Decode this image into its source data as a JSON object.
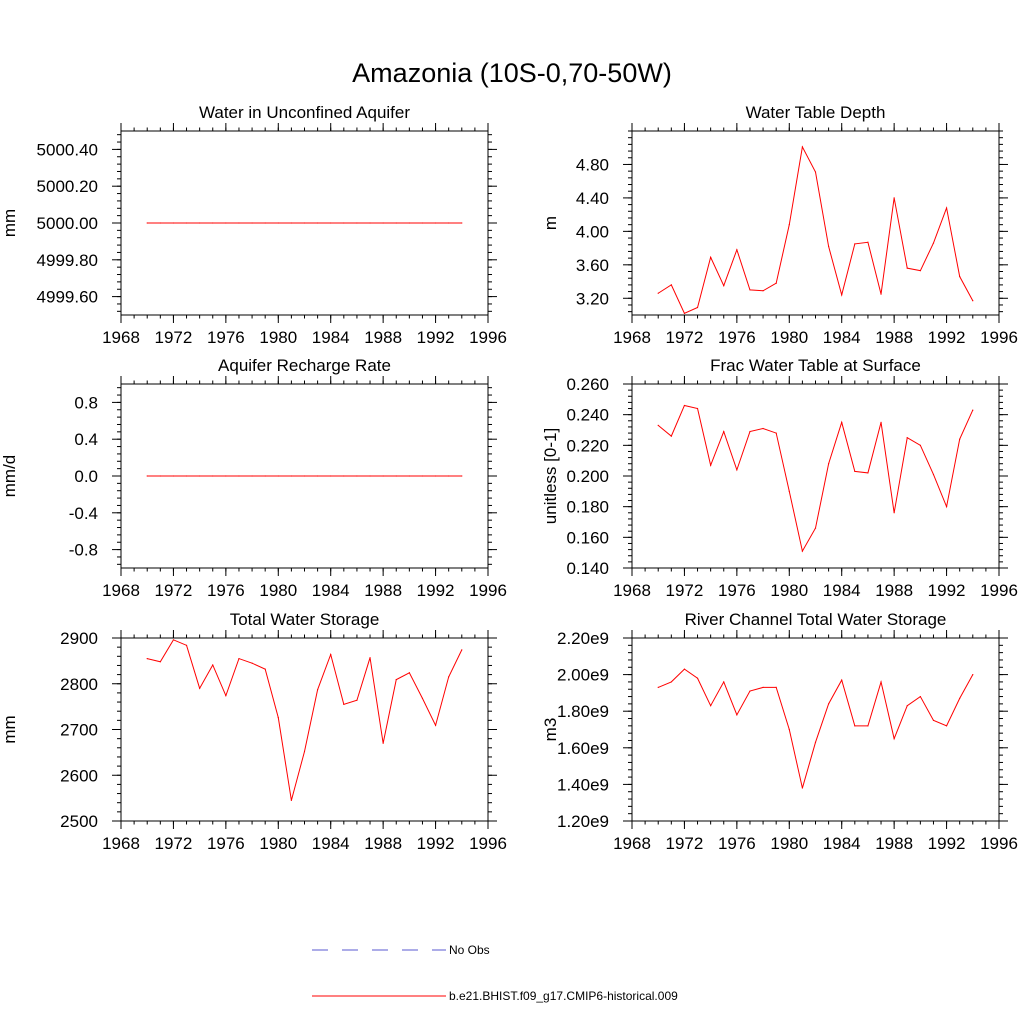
{
  "figure": {
    "title": "Amazonia (10S-0,70-50W)"
  },
  "colors": {
    "model": "#ff0000",
    "obs": "#5a5ad2",
    "axis": "#000000"
  },
  "legend": {
    "obs_label": "No Obs",
    "model_label": "b.e21.BHIST.f09_g17.CMIP6-historical.009"
  },
  "chart_data": [
    {
      "type": "line",
      "title": "Water in Unconfined Aquifer",
      "xlabel": "",
      "ylabel": "mm",
      "xlim": [
        1968,
        1996
      ],
      "ylim": [
        4999.5,
        5000.5
      ],
      "x_ticks": [
        1968,
        1972,
        1976,
        1980,
        1984,
        1988,
        1992,
        1996
      ],
      "y_ticks": [
        4999.6,
        4999.8,
        5000.0,
        5000.2,
        5000.4
      ],
      "y_tick_labels": [
        "4999.60",
        "4999.80",
        "5000.00",
        "5000.20",
        "5000.40"
      ],
      "series": [
        {
          "name": "b.e21.BHIST.f09_g17.CMIP6-historical.009",
          "x": [
            1970,
            1971,
            1972,
            1973,
            1974,
            1975,
            1976,
            1977,
            1978,
            1979,
            1980,
            1981,
            1982,
            1983,
            1984,
            1985,
            1986,
            1987,
            1988,
            1989,
            1990,
            1991,
            1992,
            1993,
            1994
          ],
          "values": [
            5000,
            5000,
            5000,
            5000,
            5000,
            5000,
            5000,
            5000,
            5000,
            5000,
            5000,
            5000,
            5000,
            5000,
            5000,
            5000,
            5000,
            5000,
            5000,
            5000,
            5000,
            5000,
            5000,
            5000,
            5000
          ]
        }
      ]
    },
    {
      "type": "line",
      "title": "Water Table Depth",
      "xlabel": "",
      "ylabel": "m",
      "xlim": [
        1968,
        1996
      ],
      "ylim": [
        3.0,
        5.2
      ],
      "x_ticks": [
        1968,
        1972,
        1976,
        1980,
        1984,
        1988,
        1992,
        1996
      ],
      "y_ticks": [
        3.2,
        3.6,
        4.0,
        4.4,
        4.8
      ],
      "y_tick_labels": [
        "3.20",
        "3.60",
        "4.00",
        "4.40",
        "4.80"
      ],
      "series": [
        {
          "name": "b.e21.BHIST.f09_g17.CMIP6-historical.009",
          "x": [
            1970,
            1971,
            1972,
            1973,
            1974,
            1975,
            1976,
            1977,
            1978,
            1979,
            1980,
            1981,
            1982,
            1983,
            1984,
            1985,
            1986,
            1987,
            1988,
            1989,
            1990,
            1991,
            1992,
            1993,
            1994
          ],
          "values": [
            3.26,
            3.36,
            3.02,
            3.09,
            3.69,
            3.35,
            3.78,
            3.3,
            3.29,
            3.38,
            4.08,
            5.01,
            4.71,
            3.82,
            3.24,
            3.85,
            3.87,
            3.25,
            4.4,
            3.56,
            3.53,
            3.86,
            4.28,
            3.46,
            3.17
          ]
        }
      ]
    },
    {
      "type": "line",
      "title": "Aquifer Recharge Rate",
      "xlabel": "",
      "ylabel": "mm/d",
      "xlim": [
        1968,
        1996
      ],
      "ylim": [
        -1.0,
        1.0
      ],
      "x_ticks": [
        1968,
        1972,
        1976,
        1980,
        1984,
        1988,
        1992,
        1996
      ],
      "y_ticks": [
        -0.8,
        -0.4,
        0.0,
        0.4,
        0.8
      ],
      "y_tick_labels": [
        "-0.8",
        "-0.4",
        "0.0",
        "0.4",
        "0.8"
      ],
      "series": [
        {
          "name": "b.e21.BHIST.f09_g17.CMIP6-historical.009",
          "x": [
            1970,
            1971,
            1972,
            1973,
            1974,
            1975,
            1976,
            1977,
            1978,
            1979,
            1980,
            1981,
            1982,
            1983,
            1984,
            1985,
            1986,
            1987,
            1988,
            1989,
            1990,
            1991,
            1992,
            1993,
            1994
          ],
          "values": [
            0,
            0,
            0,
            0,
            0,
            0,
            0,
            0,
            0,
            0,
            0,
            0,
            0,
            0,
            0,
            0,
            0,
            0,
            0,
            0,
            0,
            0,
            0,
            0,
            0
          ]
        }
      ]
    },
    {
      "type": "line",
      "title": "Frac Water Table at Surface",
      "xlabel": "",
      "ylabel": "unitless [0-1]",
      "xlim": [
        1968,
        1996
      ],
      "ylim": [
        0.14,
        0.26
      ],
      "x_ticks": [
        1968,
        1972,
        1976,
        1980,
        1984,
        1988,
        1992,
        1996
      ],
      "y_ticks": [
        0.14,
        0.16,
        0.18,
        0.2,
        0.22,
        0.24,
        0.26
      ],
      "y_tick_labels": [
        "0.140",
        "0.160",
        "0.180",
        "0.200",
        "0.220",
        "0.240",
        "0.260"
      ],
      "series": [
        {
          "name": "b.e21.BHIST.f09_g17.CMIP6-historical.009",
          "x": [
            1970,
            1971,
            1972,
            1973,
            1974,
            1975,
            1976,
            1977,
            1978,
            1979,
            1980,
            1981,
            1982,
            1983,
            1984,
            1985,
            1986,
            1987,
            1988,
            1989,
            1990,
            1991,
            1992,
            1993,
            1994
          ],
          "values": [
            0.233,
            0.226,
            0.246,
            0.244,
            0.207,
            0.229,
            0.204,
            0.229,
            0.231,
            0.228,
            0.19,
            0.151,
            0.166,
            0.208,
            0.235,
            0.203,
            0.202,
            0.235,
            0.176,
            0.225,
            0.22,
            0.201,
            0.18,
            0.224,
            0.243
          ]
        }
      ]
    },
    {
      "type": "line",
      "title": "Total Water Storage",
      "xlabel": "",
      "ylabel": "mm",
      "xlim": [
        1968,
        1996
      ],
      "ylim": [
        2500,
        2900
      ],
      "x_ticks": [
        1968,
        1972,
        1976,
        1980,
        1984,
        1988,
        1992,
        1996
      ],
      "y_ticks": [
        2500,
        2600,
        2700,
        2800,
        2900
      ],
      "y_tick_labels": [
        "2500",
        "2600",
        "2700",
        "2800",
        "2900"
      ],
      "series": [
        {
          "name": "b.e21.BHIST.f09_g17.CMIP6-historical.009",
          "x": [
            1970,
            1971,
            1972,
            1973,
            1974,
            1975,
            1976,
            1977,
            1978,
            1979,
            1980,
            1981,
            1982,
            1983,
            1984,
            1985,
            1986,
            1987,
            1988,
            1989,
            1990,
            1991,
            1992,
            1993,
            1994
          ],
          "values": [
            2855,
            2848,
            2896,
            2884,
            2790,
            2841,
            2774,
            2855,
            2845,
            2832,
            2726,
            2545,
            2652,
            2787,
            2864,
            2755,
            2764,
            2857,
            2670,
            2809,
            2824,
            2768,
            2709,
            2815,
            2874
          ]
        }
      ]
    },
    {
      "type": "line",
      "title": "River Channel Total Water Storage",
      "xlabel": "",
      "ylabel": "m3",
      "xlim": [
        1968,
        1996
      ],
      "ylim": [
        1200000000.0,
        2200000000.0
      ],
      "x_ticks": [
        1968,
        1972,
        1976,
        1980,
        1984,
        1988,
        1992,
        1996
      ],
      "y_ticks": [
        1200000000.0,
        1400000000.0,
        1600000000.0,
        1800000000.0,
        2000000000.0,
        2200000000.0
      ],
      "y_tick_labels": [
        "1.20e9",
        "1.40e9",
        "1.60e9",
        "1.80e9",
        "2.00e9",
        "2.20e9"
      ],
      "series": [
        {
          "name": "b.e21.BHIST.f09_g17.CMIP6-historical.009",
          "x": [
            1970,
            1971,
            1972,
            1973,
            1974,
            1975,
            1976,
            1977,
            1978,
            1979,
            1980,
            1981,
            1982,
            1983,
            1984,
            1985,
            1986,
            1987,
            1988,
            1989,
            1990,
            1991,
            1992,
            1993,
            1994
          ],
          "values": [
            1930000000.0,
            1960000000.0,
            2030000000.0,
            1980000000.0,
            1830000000.0,
            1960000000.0,
            1780000000.0,
            1910000000.0,
            1930000000.0,
            1930000000.0,
            1700000000.0,
            1380000000.0,
            1630000000.0,
            1840000000.0,
            1970000000.0,
            1720000000.0,
            1720000000.0,
            1960000000.0,
            1650000000.0,
            1830000000.0,
            1880000000.0,
            1750000000.0,
            1720000000.0,
            1870000000.0,
            2000000000.0
          ]
        }
      ]
    }
  ]
}
